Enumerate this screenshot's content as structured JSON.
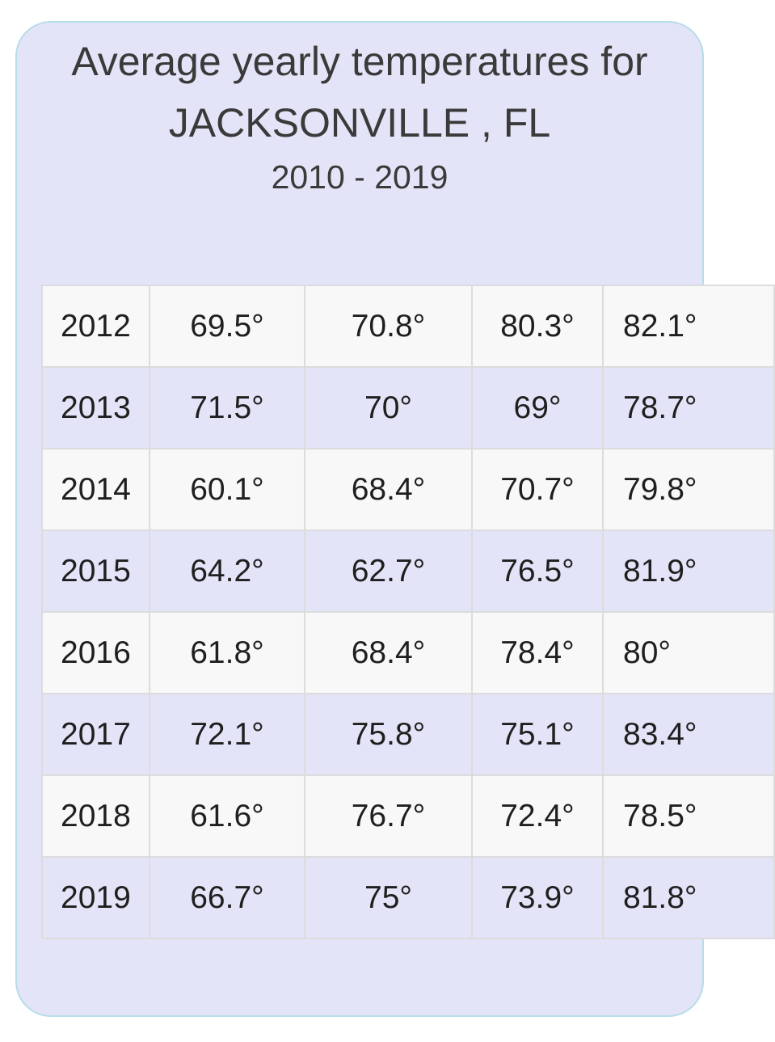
{
  "header": {
    "title_line1": "Average yearly temperatures for",
    "title_line2": "JACKSONVILLE , FL",
    "subtitle": "2010 - 2019"
  },
  "table": {
    "rows": [
      [
        "2012",
        "69.5°",
        "70.8°",
        "80.3°",
        "82.1°"
      ],
      [
        "2013",
        "71.5°",
        "70°",
        "69°",
        "78.7°"
      ],
      [
        "2014",
        "60.1°",
        "68.4°",
        "70.7°",
        "79.8°"
      ],
      [
        "2015",
        "64.2°",
        "62.7°",
        "76.5°",
        "81.9°"
      ],
      [
        "2016",
        "61.8°",
        "68.4°",
        "78.4°",
        "80°"
      ],
      [
        "2017",
        "72.1°",
        "75.8°",
        "75.1°",
        "83.4°"
      ],
      [
        "2018",
        "61.6°",
        "76.7°",
        "72.4°",
        "78.5°"
      ],
      [
        "2019",
        "66.7°",
        "75°",
        "73.9°",
        "81.8°"
      ]
    ]
  },
  "colors": {
    "card_background": "#e4e4f8",
    "card_border": "#b6dde8",
    "row_light": "#f8f8f8",
    "grid_line": "#dcdcdc"
  }
}
